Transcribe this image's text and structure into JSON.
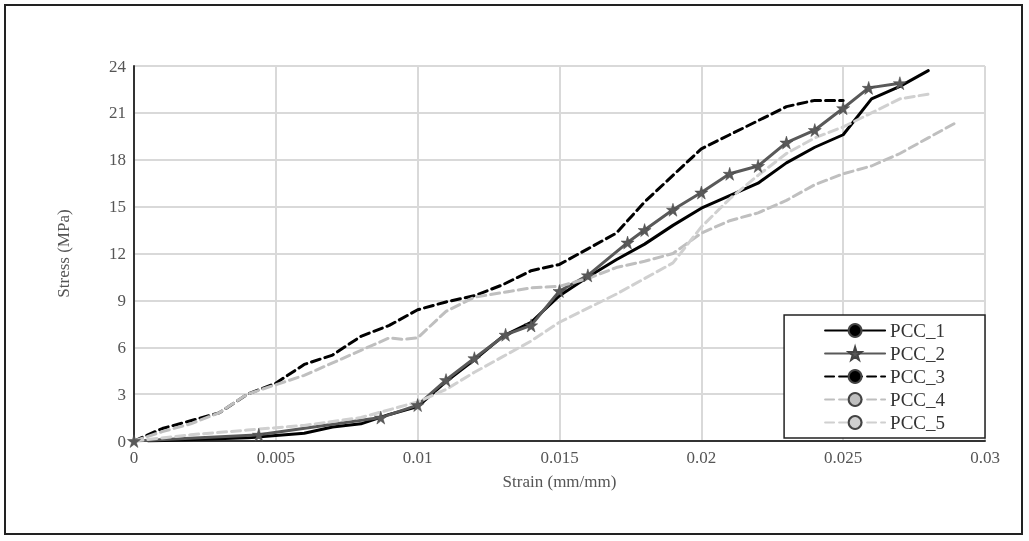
{
  "chart_data": {
    "type": "line",
    "xlabel": "Strain (mm/mm)",
    "ylabel": "Stress (MPa)",
    "xlim": [
      0,
      0.03
    ],
    "xticks": [
      0,
      0.005,
      0.01,
      0.015,
      0.02,
      0.025,
      0.03
    ],
    "ylim": [
      0,
      24
    ],
    "yticks": [
      0,
      3,
      6,
      9,
      12,
      15,
      18,
      21,
      24
    ],
    "grid": true,
    "legend": "bottom right",
    "marker": "none",
    "series": [
      {
        "name": "PCC_1",
        "color": "#000000",
        "line_style": "solid",
        "x": [
          0.0005,
          0.004,
          0.006,
          0.007,
          0.008,
          0.009,
          0.01,
          0.011,
          0.012,
          0.013,
          0.014,
          0.015,
          0.016,
          0.017,
          0.018,
          0.019,
          0.02,
          0.021,
          0.022,
          0.023,
          0.024,
          0.025,
          0.026,
          0.027,
          0.028
        ],
        "values": [
          0,
          0.2,
          0.5,
          0.9,
          1.1,
          1.7,
          2.2,
          3.8,
          5.2,
          6.7,
          7.6,
          9.3,
          10.5,
          11.6,
          12.6,
          13.8,
          14.9,
          15.7,
          16.5,
          17.8,
          18.8,
          19.6,
          21.9,
          22.7,
          23.7
        ]
      },
      {
        "name": "PCC_2",
        "color": "#595959",
        "line_style": "solid",
        "marker": "star",
        "x": [
          0,
          0.0044,
          0.0087,
          0.01,
          0.011,
          0.012,
          0.0131,
          0.014,
          0.015,
          0.016,
          0.0174,
          0.018,
          0.019,
          0.02,
          0.021,
          0.022,
          0.023,
          0.024,
          0.025,
          0.0259,
          0.027
        ],
        "values": [
          0,
          0.4,
          1.5,
          2.3,
          3.9,
          5.3,
          6.8,
          7.4,
          9.6,
          10.6,
          12.7,
          13.5,
          14.8,
          15.9,
          17.1,
          17.6,
          19.1,
          19.9,
          21.3,
          22.6,
          22.9
        ]
      },
      {
        "name": "PCC_3",
        "color": "#000000",
        "line_style": "dashed",
        "x": [
          0,
          0.001,
          0.002,
          0.003,
          0.004,
          0.005,
          0.006,
          0.007,
          0.008,
          0.009,
          0.01,
          0.011,
          0.012,
          0.013,
          0.014,
          0.015,
          0.016,
          0.017,
          0.018,
          0.019,
          0.02,
          0.021,
          0.022,
          0.023,
          0.024,
          0.025
        ],
        "values": [
          0,
          0.8,
          1.3,
          1.8,
          3.0,
          3.7,
          4.9,
          5.5,
          6.7,
          7.4,
          8.4,
          8.9,
          9.3,
          10.0,
          10.9,
          11.3,
          12.3,
          13.3,
          15.3,
          17.0,
          18.7,
          19.6,
          20.5,
          21.4,
          21.8,
          21.8
        ]
      },
      {
        "name": "PCC_4",
        "color": "#bfbfbf",
        "line_style": "dashed",
        "x": [
          0,
          0.001,
          0.002,
          0.003,
          0.004,
          0.005,
          0.006,
          0.007,
          0.008,
          0.009,
          0.0095,
          0.01,
          0.011,
          0.012,
          0.013,
          0.014,
          0.015,
          0.016,
          0.017,
          0.018,
          0.019,
          0.02,
          0.021,
          0.022,
          0.023,
          0.024,
          0.025,
          0.026,
          0.027,
          0.028,
          0.029
        ],
        "values": [
          0,
          0.6,
          1.1,
          1.8,
          3.0,
          3.6,
          4.2,
          5.0,
          5.8,
          6.6,
          6.5,
          6.6,
          8.3,
          9.2,
          9.5,
          9.8,
          9.9,
          10.4,
          11.1,
          11.5,
          12.0,
          13.3,
          14.1,
          14.6,
          15.4,
          16.4,
          17.1,
          17.6,
          18.4,
          19.4,
          20.4
        ]
      },
      {
        "name": "PCC_5",
        "color": "#d0d0d0",
        "line_style": "dashed",
        "x": [
          0,
          0.002,
          0.004,
          0.006,
          0.008,
          0.01,
          0.011,
          0.012,
          0.013,
          0.014,
          0.015,
          0.016,
          0.017,
          0.018,
          0.019,
          0.02,
          0.021,
          0.022,
          0.023,
          0.024,
          0.025,
          0.026,
          0.027,
          0.028
        ],
        "values": [
          0,
          0.4,
          0.7,
          1.0,
          1.5,
          2.5,
          3.3,
          4.4,
          5.4,
          6.4,
          7.6,
          8.5,
          9.4,
          10.4,
          11.4,
          13.7,
          15.5,
          17.0,
          18.4,
          19.4,
          20.1,
          21.0,
          21.9,
          22.2
        ]
      }
    ]
  }
}
